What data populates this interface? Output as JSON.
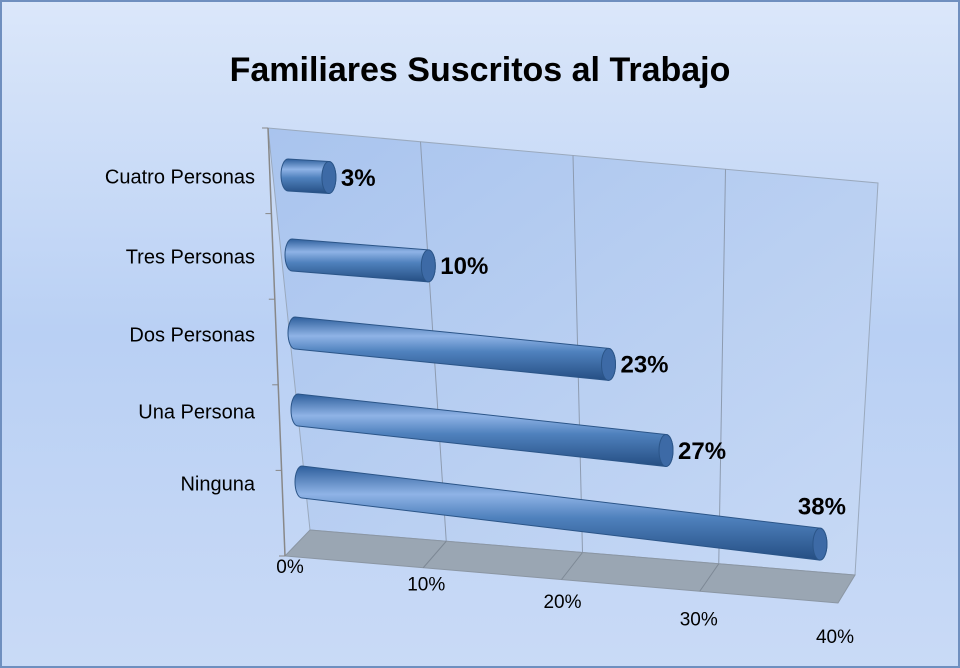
{
  "chart_data": {
    "type": "bar",
    "orientation": "horizontal",
    "title": "Familiares Suscritos al Trabajo",
    "categories": [
      "Cuatro Personas",
      "Tres Personas",
      "Dos Personas",
      "Una Persona",
      "Ninguna"
    ],
    "values": [
      3,
      10,
      23,
      27,
      38
    ],
    "value_labels": [
      "3%",
      "10%",
      "23%",
      "27%",
      "38%"
    ],
    "color": "#4f81bd",
    "xlim": [
      0,
      40
    ],
    "xticks": [
      {
        "value": 0,
        "label": "0%"
      },
      {
        "value": 10,
        "label": "10%"
      },
      {
        "value": 20,
        "label": "20%"
      },
      {
        "value": 30,
        "label": "30%"
      },
      {
        "value": 40,
        "label": "40%"
      }
    ],
    "grid": true
  }
}
